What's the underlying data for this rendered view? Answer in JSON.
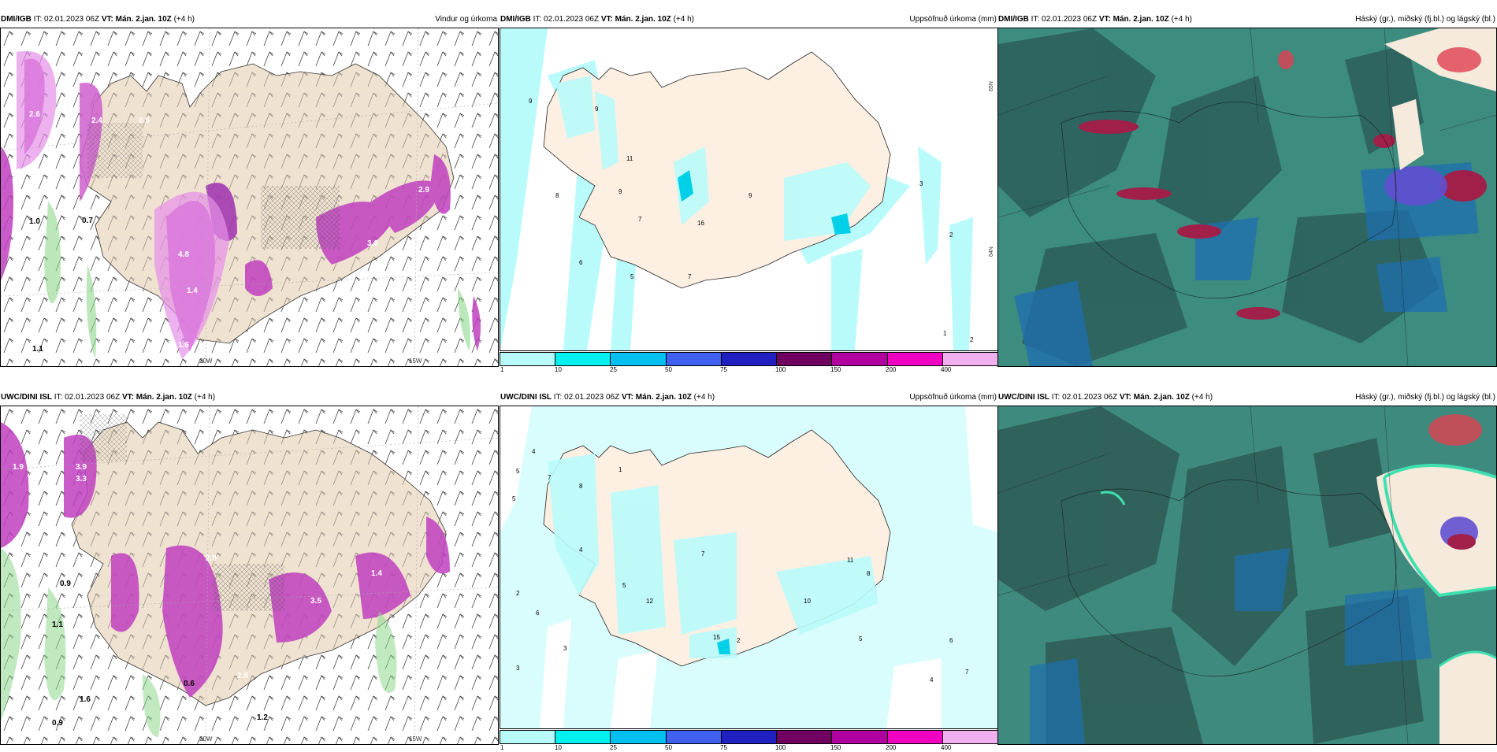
{
  "rows": [
    {
      "model": "DMI/IGB",
      "it_label": "IT:",
      "it_value": "02.01.2023 06Z",
      "vt_label": "VT:",
      "vt_value": "Mán. 2.jan. 10Z",
      "lead": "(+4 h)",
      "titles": [
        "Vindur og úrkoma",
        "Uppsöfnuð úrkoma (mm)",
        "Háský (gr.), miðský (fj.bl.) og lágský (bl.)"
      ],
      "wind_labels": [
        "2.6",
        "3.5",
        "2.4",
        "0.7",
        "1.0",
        "4.8",
        "1.4",
        "1.6",
        "2.9",
        "3.6",
        "1.1",
        "0.5"
      ],
      "precip_labels": [
        "9",
        "9",
        "11",
        "8",
        "9",
        "7",
        "6",
        "5",
        "7",
        "16",
        "9",
        "3",
        "2",
        "1",
        "2"
      ]
    },
    {
      "model": "UWC/DINI ISL",
      "it_label": "IT:",
      "it_value": "02.01.2023 06Z",
      "vt_label": "VT:",
      "vt_value": "Mán. 2.jan. 10Z",
      "lead": "(+4 h)",
      "titles": [
        "",
        "Uppsöfnuð úrkoma (mm)",
        "Háský (gr.), miðský (fj.bl.) og lágský (bl.)"
      ],
      "wind_labels": [
        "1.9",
        "3.9",
        "3.3",
        "0.9",
        "1.1",
        "1.6",
        "0.9",
        "2.8",
        "3.5",
        "1.2",
        "2.9",
        "1.4",
        "0.6"
      ],
      "precip_labels": [
        "4",
        "5",
        "5",
        "7",
        "8",
        "1",
        "4",
        "2",
        "6",
        "3",
        "5",
        "12",
        "7",
        "10",
        "11",
        "8",
        "5",
        "15",
        "2",
        "3",
        "4",
        "6",
        "7"
      ]
    }
  ],
  "map_axes": {
    "lat_labels": [
      "65N",
      "64N"
    ],
    "lon_labels": [
      "20W",
      "15W"
    ]
  },
  "colorbar": {
    "ticks": [
      "1",
      "10",
      "25",
      "50",
      "75",
      "100",
      "150",
      "200",
      "400"
    ],
    "colors": [
      "#b8fafa",
      "#00f0f0",
      "#00c0f0",
      "#4060f0",
      "#2020c0",
      "#700060",
      "#b000a0",
      "#f000c0",
      "#f0b0f0"
    ]
  },
  "colors": {
    "land": "#f3e4d2",
    "precip_land": "#fdf0e3",
    "magenta": "#c040c0",
    "magenta_light": "#e690e8",
    "cyan": "#b9fbfb",
    "cloud_base": "#3a8a80"
  }
}
